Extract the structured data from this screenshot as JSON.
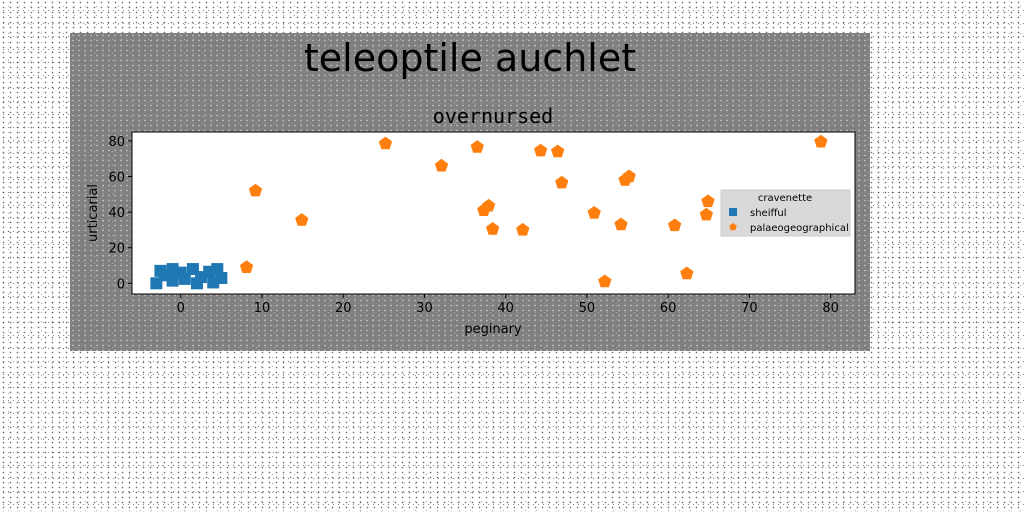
{
  "chart_data": {
    "type": "scatter",
    "title": "teleoptile auchlet",
    "subtitle": "overnursed",
    "xlabel": "peginary",
    "ylabel": "urticarial",
    "xlim": [
      -6,
      83
    ],
    "ylim": [
      -6,
      85
    ],
    "x_ticks": [
      0,
      10,
      20,
      30,
      40,
      50,
      60,
      70,
      80
    ],
    "y_ticks": [
      0,
      20,
      40,
      60,
      80
    ],
    "grid": false,
    "legend": {
      "title": "cravenette",
      "placement": "center-right"
    },
    "series": [
      {
        "name": "sheifful",
        "marker": "square",
        "color": "#1f77b4",
        "points": [
          {
            "x": -3.0,
            "y": 0.0
          },
          {
            "x": -2.0,
            "y": 4.5
          },
          {
            "x": -1.0,
            "y": 1.5
          },
          {
            "x": 0.0,
            "y": 6.0
          },
          {
            "x": 0.5,
            "y": 2.5
          },
          {
            "x": 1.5,
            "y": 8.0
          },
          {
            "x": 2.5,
            "y": 3.5
          },
          {
            "x": 3.5,
            "y": 6.5
          },
          {
            "x": 4.0,
            "y": 0.5
          },
          {
            "x": 4.5,
            "y": 8.0
          },
          {
            "x": 5.0,
            "y": 3.0
          },
          {
            "x": -1.0,
            "y": 8.0
          },
          {
            "x": -2.5,
            "y": 7.0
          },
          {
            "x": 2.0,
            "y": 0.0
          }
        ]
      },
      {
        "name": "palaeogeographical",
        "marker": "pentagon",
        "color": "#ff7f0e",
        "points": [
          {
            "x": 8.1,
            "y": 9.0
          },
          {
            "x": 9.2,
            "y": 52.0
          },
          {
            "x": 14.9,
            "y": 35.5
          },
          {
            "x": 25.2,
            "y": 78.5
          },
          {
            "x": 32.1,
            "y": 66.0
          },
          {
            "x": 36.5,
            "y": 76.5
          },
          {
            "x": 37.3,
            "y": 41.0
          },
          {
            "x": 37.9,
            "y": 43.5
          },
          {
            "x": 38.4,
            "y": 30.5
          },
          {
            "x": 42.1,
            "y": 30.0
          },
          {
            "x": 44.3,
            "y": 74.5
          },
          {
            "x": 46.4,
            "y": 74.0
          },
          {
            "x": 46.9,
            "y": 56.5
          },
          {
            "x": 50.9,
            "y": 39.5
          },
          {
            "x": 52.2,
            "y": 1.0
          },
          {
            "x": 54.2,
            "y": 33.0
          },
          {
            "x": 54.7,
            "y": 58.0
          },
          {
            "x": 55.2,
            "y": 60.0
          },
          {
            "x": 60.8,
            "y": 32.5
          },
          {
            "x": 62.3,
            "y": 5.5
          },
          {
            "x": 64.7,
            "y": 38.5
          },
          {
            "x": 64.9,
            "y": 46.0
          },
          {
            "x": 78.8,
            "y": 79.5
          }
        ]
      }
    ]
  }
}
